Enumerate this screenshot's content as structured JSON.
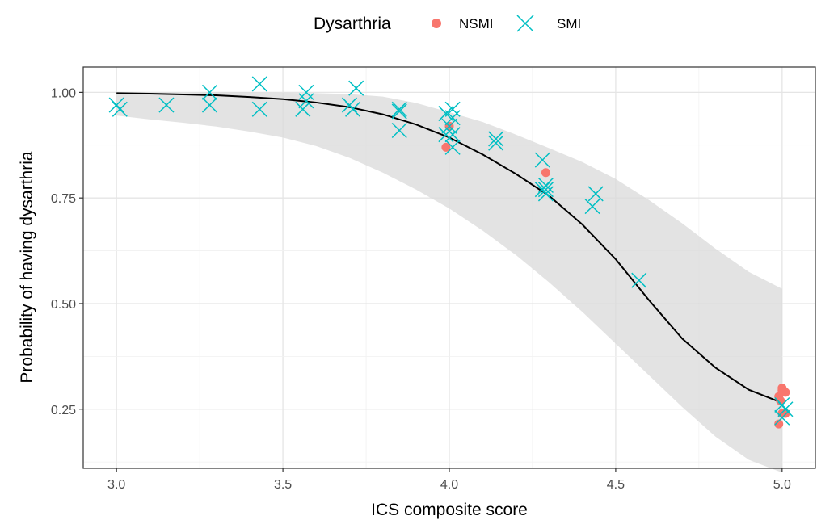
{
  "chart_data": {
    "type": "scatter",
    "xlabel": "ICS composite score",
    "ylabel": "Probability of having dysarthria",
    "xlim": [
      2.9,
      5.1
    ],
    "ylim": [
      0.11,
      1.06
    ],
    "x_ticks": [
      "3.0",
      "3.5",
      "4.0",
      "4.5",
      "5.0"
    ],
    "y_ticks": [
      "0.25",
      "0.50",
      "0.75",
      "1.00"
    ],
    "grid": true,
    "legend": {
      "title": "Dysarthria",
      "placement": "top",
      "entries": [
        "NSMI",
        "SMI"
      ]
    },
    "colors": {
      "NSMI": "#f8766d",
      "SMI": "#00bfc4",
      "fit": "#000000",
      "ribbon": "#d9d9d9"
    },
    "series": [
      {
        "name": "NSMI",
        "marker": "circle",
        "points": [
          [
            4.0,
            0.92
          ],
          [
            3.99,
            0.87
          ],
          [
            4.29,
            0.81
          ],
          [
            4.99,
            0.28
          ],
          [
            5.0,
            0.295
          ],
          [
            5.01,
            0.29
          ],
          [
            4.995,
            0.27
          ],
          [
            5.0,
            0.24
          ],
          [
            5.01,
            0.24
          ],
          [
            4.99,
            0.215
          ],
          [
            5.0,
            0.3
          ]
        ]
      },
      {
        "name": "SMI",
        "marker": "x",
        "points": [
          [
            3.0,
            0.97
          ],
          [
            3.01,
            0.96
          ],
          [
            3.15,
            0.97
          ],
          [
            3.28,
            0.97
          ],
          [
            3.28,
            1.0
          ],
          [
            3.43,
            1.02
          ],
          [
            3.43,
            0.96
          ],
          [
            3.56,
            0.96
          ],
          [
            3.57,
            0.98
          ],
          [
            3.57,
            1.0
          ],
          [
            3.7,
            0.97
          ],
          [
            3.71,
            0.96
          ],
          [
            3.72,
            1.01
          ],
          [
            3.85,
            0.96
          ],
          [
            3.85,
            0.91
          ],
          [
            3.85,
            0.955
          ],
          [
            3.99,
            0.95
          ],
          [
            4.0,
            0.92
          ],
          [
            3.99,
            0.9
          ],
          [
            4.01,
            0.9
          ],
          [
            4.01,
            0.96
          ],
          [
            4.01,
            0.94
          ],
          [
            4.01,
            0.87
          ],
          [
            4.14,
            0.89
          ],
          [
            4.14,
            0.88
          ],
          [
            4.28,
            0.84
          ],
          [
            4.28,
            0.77
          ],
          [
            4.29,
            0.76
          ],
          [
            4.29,
            0.77
          ],
          [
            4.29,
            0.78
          ],
          [
            4.43,
            0.73
          ],
          [
            4.44,
            0.76
          ],
          [
            4.57,
            0.555
          ],
          [
            5.0,
            0.26
          ],
          [
            5.0,
            0.23
          ],
          [
            5.01,
            0.25
          ]
        ]
      }
    ],
    "fit": {
      "x": [
        3.0,
        3.1,
        3.2,
        3.3,
        3.4,
        3.5,
        3.6,
        3.7,
        3.8,
        3.9,
        4.0,
        4.1,
        4.2,
        4.3,
        4.4,
        4.5,
        4.6,
        4.7,
        4.8,
        4.9,
        5.0
      ],
      "y": [
        0.998,
        0.997,
        0.995,
        0.993,
        0.989,
        0.984,
        0.976,
        0.965,
        0.948,
        0.924,
        0.893,
        0.853,
        0.807,
        0.755,
        0.687,
        0.605,
        0.508,
        0.417,
        0.348,
        0.296,
        0.265
      ],
      "lower": [
        0.945,
        0.936,
        0.928,
        0.919,
        0.907,
        0.893,
        0.873,
        0.845,
        0.81,
        0.77,
        0.725,
        0.673,
        0.615,
        0.55,
        0.48,
        0.405,
        0.33,
        0.255,
        0.185,
        0.13,
        0.1
      ],
      "upper": [
        1.0,
        1.0,
        1.0,
        1.0,
        1.0,
        0.999,
        0.998,
        0.996,
        0.99,
        0.975,
        0.953,
        0.93,
        0.9,
        0.868,
        0.835,
        0.795,
        0.745,
        0.69,
        0.63,
        0.575,
        0.535
      ]
    }
  }
}
